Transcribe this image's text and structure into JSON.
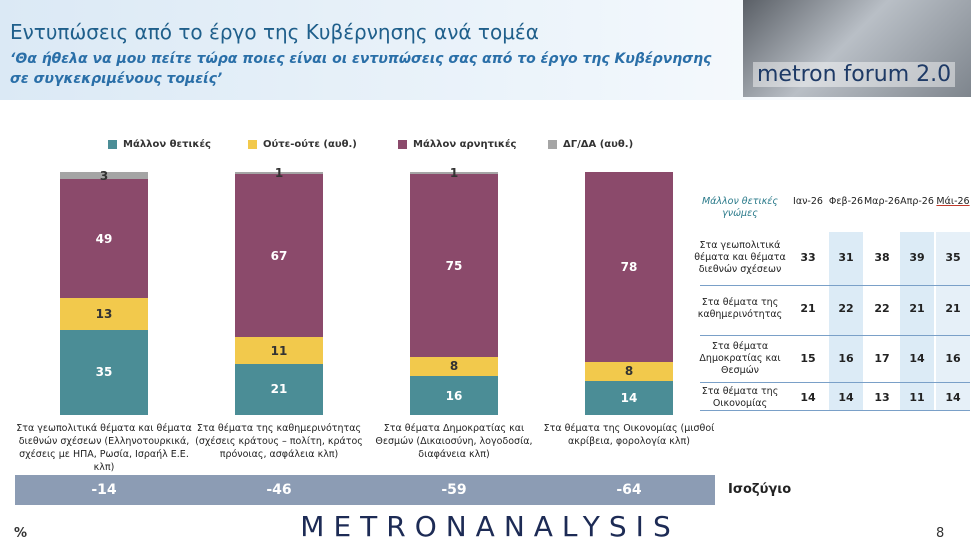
{
  "header": {
    "title": "Εντυπώσεις από το έργο της Κυβέρνησης ανά τομέα",
    "subtitle": "‘Θα ήθελα να μου πείτε τώρα ποιες είναι οι εντυπώσεις σας από το έργο της Κυβέρνησης σε συγκεκριμένους τομείς’",
    "logo": "metron forum 2.0"
  },
  "chart_data": {
    "type": "stacked_bar",
    "categories": [
      "Στα γεωπολιτικά θέματα και θέματα διεθνών σχέσεων (Ελληνοτουρκικά, σχέσεις με ΗΠΑ, Ρωσία, Ισραήλ Ε.Ε. κλπ)",
      "Στα θέματα της καθημερινότητας (σχέσεις κράτους – πολίτη, κράτος πρόνοιας, ασφάλεια κλπ)",
      "Στα θέματα Δημοκρατίας και Θεσμών (Δικαιοσύνη, λογοδοσία, διαφάνεια κλπ)",
      "Στα θέματα της Οικονομίας (μισθοί ακρίβεια, φορολογία κλπ)"
    ],
    "series": [
      {
        "name": "Μάλλον θετικές",
        "color": "#4b8d96",
        "values": [
          35,
          21,
          16,
          14
        ]
      },
      {
        "name": "Ούτε-ούτε  (αυθ.)",
        "color": "#f2c94c",
        "values": [
          13,
          11,
          8,
          8
        ]
      },
      {
        "name": "Μάλλον αρνητικές",
        "color": "#8b4a6b",
        "values": [
          49,
          67,
          75,
          78
        ]
      },
      {
        "name": "ΔΓ/ΔΑ (αυθ.)",
        "color": "#a5a5a5",
        "values": [
          3,
          1,
          1,
          null
        ]
      }
    ]
  },
  "balance": {
    "label": "Ισοζύγιο",
    "values": [
      -14,
      -46,
      -59,
      -64
    ]
  },
  "table": {
    "title": "Μάλλον θετικές γνώμες",
    "columns": [
      "Ιαν-26",
      "Φεβ-26",
      "Μαρ-26",
      "Απρ-26",
      "Μάι-26"
    ],
    "rows": [
      {
        "label": "Στα γεωπολιτικά θέματα και θέματα διεθνών σχέσεων",
        "values": [
          33,
          31,
          38,
          39,
          35
        ]
      },
      {
        "label": "Στα θέματα της καθημερινότητας",
        "values": [
          21,
          22,
          22,
          21,
          21
        ]
      },
      {
        "label": "Στα θέματα Δημοκρατίας και Θεσμών",
        "values": [
          15,
          16,
          17,
          14,
          16
        ]
      },
      {
        "label": "Στα θέματα της Οικονομίας",
        "values": [
          14,
          14,
          13,
          11,
          14
        ]
      }
    ]
  },
  "footer": {
    "brand": "METRONANALYSIS",
    "unit": "%",
    "page": "8"
  }
}
